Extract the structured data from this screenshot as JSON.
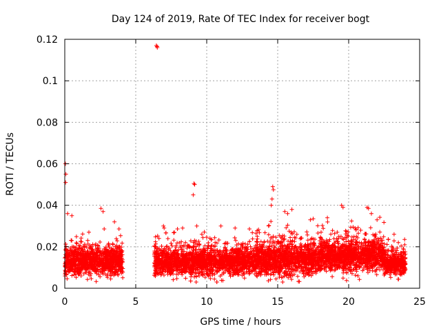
{
  "chart_data": {
    "type": "scatter",
    "title": "Day 124 of 2019, Rate Of TEC Index for receiver bogt",
    "xlabel": "GPS time / hours",
    "ylabel": "ROTI / TECUs",
    "xlim": [
      0,
      25
    ],
    "ylim": [
      0,
      0.12
    ],
    "x_ticks": [
      0,
      5,
      10,
      15,
      20,
      25
    ],
    "y_ticks": [
      0,
      0.02,
      0.04,
      0.06,
      0.08,
      0.1,
      0.12
    ],
    "x_tick_labels": [
      "0",
      "5",
      "10",
      "15",
      "20",
      "25"
    ],
    "y_tick_labels": [
      "0",
      "0.02",
      "0.04",
      "0.06",
      "0.08",
      "0.1",
      "0.12"
    ],
    "grid": true,
    "marker": "+",
    "color": "#ff0000",
    "series": [
      {
        "name": "ROTI",
        "segments": [
          {
            "x_start": 0.0,
            "x_end": 4.1,
            "base": 0.013,
            "spread": 0.006
          },
          {
            "x_start": 6.3,
            "x_end": 13.5,
            "base": 0.013,
            "spread": 0.006
          },
          {
            "x_start": 13.5,
            "x_end": 18.0,
            "base": 0.014,
            "spread": 0.007
          },
          {
            "x_start": 18.0,
            "x_end": 22.5,
            "base": 0.016,
            "spread": 0.007
          },
          {
            "x_start": 22.5,
            "x_end": 24.0,
            "base": 0.012,
            "spread": 0.005
          }
        ],
        "outliers": [
          {
            "x": 0.05,
            "y": 0.06
          },
          {
            "x": 0.08,
            "y": 0.055
          },
          {
            "x": 0.06,
            "y": 0.051
          },
          {
            "x": 0.2,
            "y": 0.036
          },
          {
            "x": 0.5,
            "y": 0.035
          },
          {
            "x": 1.7,
            "y": 0.027
          },
          {
            "x": 2.55,
            "y": 0.0385
          },
          {
            "x": 2.7,
            "y": 0.037
          },
          {
            "x": 3.5,
            "y": 0.032
          },
          {
            "x": 6.45,
            "y": 0.117
          },
          {
            "x": 6.52,
            "y": 0.116
          },
          {
            "x": 6.5,
            "y": 0.1165
          },
          {
            "x": 6.95,
            "y": 0.03
          },
          {
            "x": 7.0,
            "y": 0.029
          },
          {
            "x": 9.1,
            "y": 0.0505
          },
          {
            "x": 9.15,
            "y": 0.05
          },
          {
            "x": 9.05,
            "y": 0.045
          },
          {
            "x": 9.3,
            "y": 0.03
          },
          {
            "x": 8.3,
            "y": 0.029
          },
          {
            "x": 11.0,
            "y": 0.03
          },
          {
            "x": 12.0,
            "y": 0.029
          },
          {
            "x": 14.65,
            "y": 0.049
          },
          {
            "x": 14.7,
            "y": 0.0475
          },
          {
            "x": 14.6,
            "y": 0.043
          },
          {
            "x": 14.55,
            "y": 0.04
          },
          {
            "x": 15.5,
            "y": 0.037
          },
          {
            "x": 15.7,
            "y": 0.036
          },
          {
            "x": 16.0,
            "y": 0.038
          },
          {
            "x": 17.3,
            "y": 0.033
          },
          {
            "x": 17.5,
            "y": 0.0335
          },
          {
            "x": 18.5,
            "y": 0.034
          },
          {
            "x": 19.5,
            "y": 0.04
          },
          {
            "x": 19.6,
            "y": 0.039
          },
          {
            "x": 21.3,
            "y": 0.039
          },
          {
            "x": 21.4,
            "y": 0.0385
          },
          {
            "x": 21.6,
            "y": 0.036
          },
          {
            "x": 22.0,
            "y": 0.033
          },
          {
            "x": 23.2,
            "y": 0.026
          },
          {
            "x": 23.5,
            "y": 0.022
          }
        ]
      }
    ]
  }
}
